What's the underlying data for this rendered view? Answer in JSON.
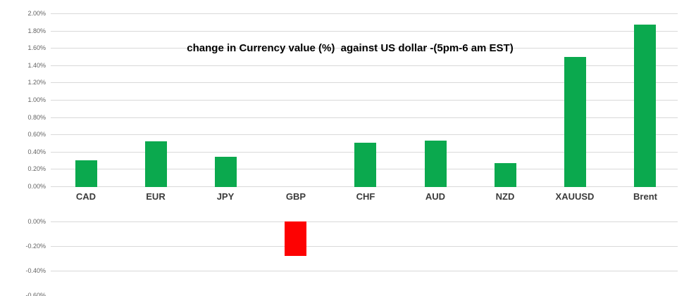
{
  "chart_data": {
    "type": "bar",
    "title": "change in Currency value (%)  against US dollar -(5pm-6 am EST)",
    "categories": [
      "CAD",
      "EUR",
      "JPY",
      "GBP",
      "CHF",
      "AUD",
      "NZD",
      "XAUUSD",
      "Brent"
    ],
    "values": [
      0.31,
      0.53,
      0.35,
      -0.28,
      0.51,
      0.54,
      0.28,
      1.5,
      1.88
    ],
    "value_unit": "%",
    "legend": false,
    "grid": true,
    "upper_axis": {
      "range": [
        0.0,
        2.0
      ],
      "step": 0.2,
      "ticks": [
        {
          "label": "2.00%",
          "value": 2.0,
          "gridline": true
        },
        {
          "label": "1.80%",
          "value": 1.8,
          "gridline": true
        },
        {
          "label": "1.60%",
          "value": 1.6,
          "gridline": true
        },
        {
          "label": "1.40%",
          "value": 1.4,
          "gridline": true
        },
        {
          "label": "1.20%",
          "value": 1.2,
          "gridline": true
        },
        {
          "label": "1.00%",
          "value": 1.0,
          "gridline": true
        },
        {
          "label": "0.80%",
          "value": 0.8,
          "gridline": true
        },
        {
          "label": "0.60%",
          "value": 0.6,
          "gridline": true
        },
        {
          "label": "0.40%",
          "value": 0.4,
          "gridline": true
        },
        {
          "label": "0.20%",
          "value": 0.2,
          "gridline": true
        },
        {
          "label": "0.00%",
          "value": 0.0,
          "gridline": true
        }
      ]
    },
    "lower_axis": {
      "range": [
        -0.6,
        0.0
      ],
      "step": 0.2,
      "ticks": [
        {
          "label": "0.00%",
          "value": 0.0,
          "gridline": true
        },
        {
          "label": "-0.20%",
          "value": -0.2,
          "gridline": true
        },
        {
          "label": "-0.40%",
          "value": -0.4,
          "gridline": true
        },
        {
          "label": "-0.60%",
          "value": -0.6,
          "gridline": false
        }
      ]
    },
    "colors": {
      "positive_bar": "#0ba94e",
      "negative_bar": "#fd0202",
      "gridline": "#d9d9d9",
      "tick_label": "#636363",
      "category_label": "#3b3b3b",
      "title": "#000000"
    }
  }
}
